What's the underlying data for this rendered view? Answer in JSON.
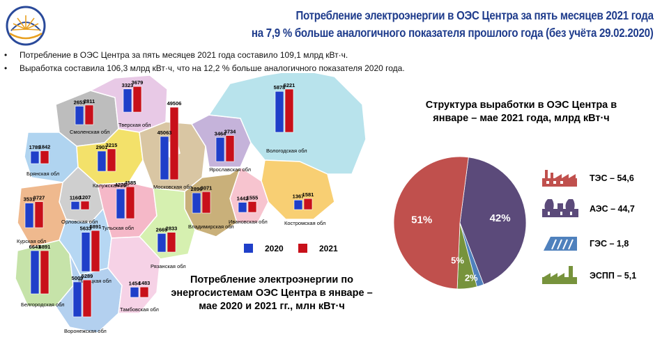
{
  "header": {
    "title_line1": "Потребление электроэнергии в ОЭС Центра за пять  месяцев 2021 года",
    "title_line2": "на 7,9 % больше аналогичного показателя прошлого года (без учёта 29.02.2020)"
  },
  "bullets": [
    "Потребление  в ОЭС Центра за пять месяцев 2021 года составило  109,1 млрд кВт·ч.",
    "Выработка  составила  106,3 млрд кВт·ч, что на 12,2 % больше  аналогичного  показателя  2020 года."
  ],
  "colors": {
    "y2020": "#1f3fc9",
    "y2021": "#c8101a",
    "title": "#1f3c8c",
    "tes": "#c0504d",
    "aes": "#5b4a7a",
    "ges": "#4f81bd",
    "espp": "#77933c"
  },
  "map_chart": {
    "title": "Потребление электроэнергии по энергосистемам ОЭС Центра в январе – мае 2020 и 2021 гг., млн кВт·ч",
    "legend": [
      "2020",
      "2021"
    ]
  },
  "pie_chart": {
    "title": "Структура выработки в ОЭС Центра в январе – мае 2021 года, млрд кВт·ч",
    "legend": [
      {
        "label": "ТЭС – 54,6",
        "icon": "thermal-plant-icon"
      },
      {
        "label": "АЭС – 44,7",
        "icon": "nuclear-plant-icon"
      },
      {
        "label": "ГЭС – 1,8",
        "icon": "hydro-plant-icon"
      },
      {
        "label": "ЭСПП – 5,1",
        "icon": "industrial-plant-icon"
      }
    ]
  },
  "chart_data": [
    {
      "type": "bar",
      "title": "Потребление электроэнергии по энергосистемам ОЭС Центра в январе – мае 2020 и 2021 гг., млн кВт·ч",
      "series": [
        {
          "name": "2020",
          "values": [
            2653,
            3323,
            1789,
            2901,
            45063,
            3464,
            5878,
            1160,
            4276,
            2896,
            1442,
            1367,
            3531,
            5633,
            2669,
            6643,
            5009,
            1454
          ]
        },
        {
          "name": "2021",
          "values": [
            2811,
            3679,
            1842,
            3215,
            49506,
            3734,
            6221,
            1207,
            4585,
            3071,
            1555,
            1581,
            3727,
            5891,
            2833,
            6891,
            5289,
            1483
          ]
        }
      ],
      "categories": [
        "Смоленская обл",
        "Тверская обл",
        "Брянская обл",
        "Калужская обл",
        "Московская обл",
        "Ярославская обл",
        "Вологодская обл",
        "Орловская обл",
        "Тульская обл",
        "Владимирская обл",
        "Ивановская обл",
        "Костромская обл",
        "Курская обл",
        "Липецкая обл",
        "Рязанская обл",
        "Белгородская обл",
        "Воронежская обл",
        "Тамбовская обл"
      ],
      "category_labels": [
        "Смоленская обл",
        "Тверская обл",
        "Брянская обл",
        "Калужская обл",
        "Московская обл",
        "Ярославская обл",
        "Вологодская обл",
        "Орловская обл",
        "Тульская обл",
        "Владимирская обл",
        "Ивановская обл",
        "Костромская обл",
        "Курская обл",
        "Липецкая обл",
        "Рязанская обл",
        "Белгородская обл",
        "Воронежская обл",
        "Тамбовская обл"
      ]
    },
    {
      "type": "pie",
      "title": "Структура выработки в ОЭС Центра в январе – мае 2021 года, млрд кВт·ч",
      "categories": [
        "ТЭС",
        "АЭС",
        "ГЭС",
        "ЭСПП"
      ],
      "values": [
        54.6,
        44.7,
        1.8,
        5.1
      ],
      "percent_labels": [
        "51%",
        "42%",
        "2%",
        "5%"
      ]
    }
  ]
}
